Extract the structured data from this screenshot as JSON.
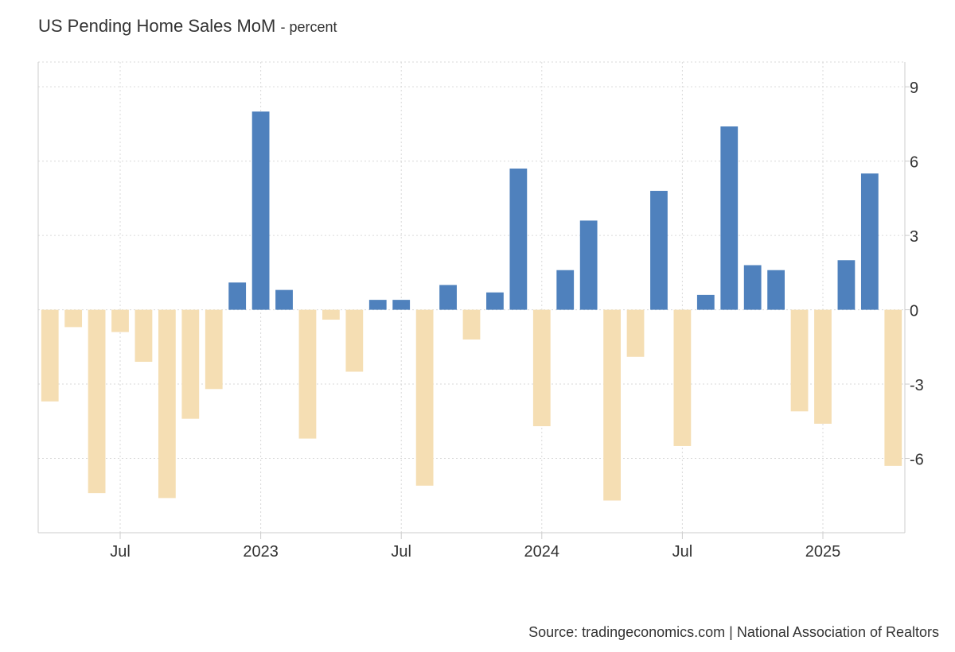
{
  "title": "US Pending Home Sales MoM",
  "subtitle": "- percent",
  "source": "Source: tradingeconomics.com | National Association of Realtors",
  "colors": {
    "positive": "#4f81bd",
    "negative": "#f5deb3",
    "grid": "#d9d9d9",
    "axis": "#cccccc",
    "text": "#333333"
  },
  "chart_data": {
    "type": "bar",
    "title": "US Pending Home Sales MoM",
    "ylabel": "percent",
    "ylim": [
      -9,
      10
    ],
    "yticks": [
      9,
      6,
      3,
      0,
      -3,
      -6
    ],
    "ytick_labels": [
      "9",
      "6",
      "3",
      "0",
      "-3",
      "-6"
    ],
    "grid": true,
    "categories": [
      "2022-04",
      "2022-05",
      "2022-06",
      "2022-07",
      "2022-08",
      "2022-09",
      "2022-10",
      "2022-11",
      "2022-12",
      "2023-01",
      "2023-02",
      "2023-03",
      "2023-04",
      "2023-05",
      "2023-06",
      "2023-07",
      "2023-08",
      "2023-09",
      "2023-10",
      "2023-11",
      "2023-12",
      "2024-01",
      "2024-02",
      "2024-03",
      "2024-04",
      "2024-05",
      "2024-06",
      "2024-07",
      "2024-08",
      "2024-09",
      "2024-10",
      "2024-11",
      "2024-12",
      "2025-01",
      "2025-02",
      "2025-03",
      "2025-04"
    ],
    "values": [
      -3.7,
      -0.7,
      -7.4,
      -0.9,
      -2.1,
      -7.6,
      -4.4,
      -3.2,
      1.1,
      8.0,
      0.8,
      -5.2,
      -0.4,
      -2.5,
      0.4,
      0.4,
      -7.1,
      1.0,
      -1.2,
      0.7,
      5.7,
      -4.7,
      1.6,
      3.6,
      -7.7,
      -1.9,
      4.8,
      -5.5,
      0.6,
      7.4,
      1.8,
      1.6,
      -4.1,
      -4.6,
      2.0,
      5.5,
      -6.3
    ],
    "xtick_labels": [
      {
        "label": "Jul",
        "index": 3
      },
      {
        "label": "2023",
        "index": 9
      },
      {
        "label": "Jul",
        "index": 15
      },
      {
        "label": "2024",
        "index": 21
      },
      {
        "label": "Jul",
        "index": 27
      },
      {
        "label": "2025",
        "index": 33
      }
    ]
  }
}
